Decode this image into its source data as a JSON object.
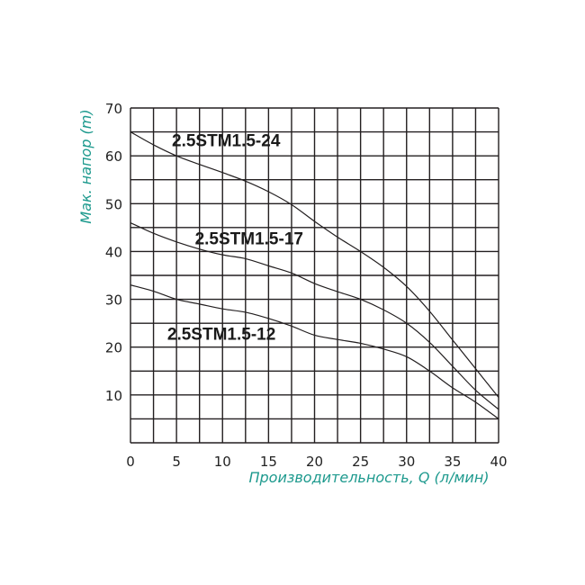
{
  "chart_data": {
    "type": "line",
    "title": "",
    "xlabel": "Производительность, Q (л/мин)",
    "ylabel": "Мак. напор (m)",
    "xlim": [
      0,
      40
    ],
    "ylim": [
      0,
      70
    ],
    "x_ticks": [
      0,
      5,
      10,
      15,
      20,
      25,
      30,
      35,
      40
    ],
    "y_ticks": [
      10,
      20,
      30,
      40,
      50,
      60,
      70
    ],
    "grid": true,
    "grid_x_step": 2.5,
    "grid_y_step": 5,
    "legend_position": "inline labels",
    "series": [
      {
        "name": "2.5STM1.5-24",
        "x": [
          0,
          2.5,
          5,
          7.5,
          10,
          12.5,
          15,
          17.5,
          20,
          22.5,
          25,
          27.5,
          30,
          32.5,
          35,
          37.5,
          40
        ],
        "values": [
          65,
          62.3,
          60,
          58.2,
          56.5,
          54.7,
          52.5,
          49.8,
          46.3,
          43,
          40,
          36.7,
          32.7,
          27.5,
          21.5,
          15.5,
          9.5
        ],
        "label_pos": {
          "x": 4.5,
          "y": 62
        }
      },
      {
        "name": "2.5STM1.5-17",
        "x": [
          0,
          2.5,
          5,
          7.5,
          10,
          12.5,
          15,
          17.5,
          20,
          22.5,
          25,
          27.5,
          30,
          32.5,
          35,
          37.5,
          40
        ],
        "values": [
          46,
          43.8,
          42,
          40.5,
          39.3,
          38.5,
          37,
          35.5,
          33.3,
          31.6,
          30,
          27.8,
          25,
          21,
          16,
          11,
          7
        ],
        "label_pos": {
          "x": 7,
          "y": 41.5
        }
      },
      {
        "name": "2.5STM1.5-12",
        "x": [
          0,
          2.5,
          5,
          7.5,
          10,
          12.5,
          15,
          17.5,
          20,
          22.5,
          25,
          27.5,
          30,
          32.5,
          35,
          37.5,
          40
        ],
        "values": [
          33,
          31.7,
          30,
          29,
          28,
          27.3,
          26,
          24.4,
          22.5,
          21.6,
          20.8,
          19.6,
          18,
          15,
          11.5,
          8.5,
          5
        ],
        "label_pos": {
          "x": 4,
          "y": 21.5
        }
      }
    ]
  },
  "colors": {
    "axis_title": "#1e9a8e",
    "grid": "#231f20",
    "curve": "#231f20",
    "text": "#222222"
  }
}
